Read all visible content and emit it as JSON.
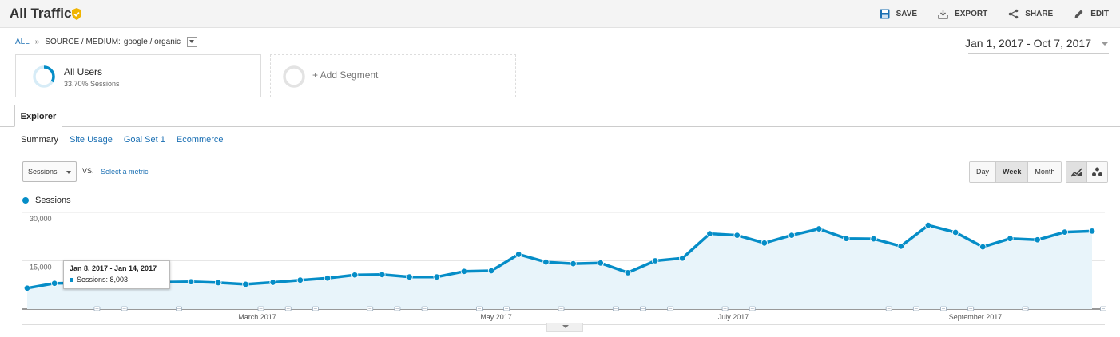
{
  "header": {
    "title": "All Traffic",
    "actions": [
      {
        "label": "SAVE",
        "icon": "save-icon"
      },
      {
        "label": "EXPORT",
        "icon": "export-icon"
      },
      {
        "label": "SHARE",
        "icon": "share-icon"
      },
      {
        "label": "EDIT",
        "icon": "edit-icon"
      }
    ]
  },
  "breadcrumb": {
    "all": "ALL",
    "separator": "»",
    "dimension": "SOURCE / MEDIUM:",
    "value": "google / organic"
  },
  "date_range": "Jan 1, 2017 - Oct 7, 2017",
  "segments": {
    "active": {
      "name": "All Users",
      "sub": "33.70% Sessions",
      "fraction": 0.337
    },
    "add": "+ Add Segment"
  },
  "tabs": {
    "explorer": "Explorer"
  },
  "subtabs": [
    {
      "label": "Summary",
      "active": true
    },
    {
      "label": "Site Usage",
      "active": false
    },
    {
      "label": "Goal Set 1",
      "active": false
    },
    {
      "label": "Ecommerce",
      "active": false
    }
  ],
  "controls": {
    "metric": "Sessions",
    "vs": "VS.",
    "select_metric": "Select a metric",
    "granularity": [
      "Day",
      "Week",
      "Month"
    ],
    "granularity_selected": "Week"
  },
  "legend": {
    "label": "Sessions",
    "color": "#058dc7"
  },
  "tooltip": {
    "range": "Jan 8, 2017 - Jan 14, 2017",
    "value": "Sessions: 8,003"
  },
  "chart_data": {
    "type": "area",
    "series": [
      {
        "name": "Sessions",
        "color": "#058dc7",
        "values": [
          6500,
          8003,
          8100,
          8150,
          8200,
          8350,
          8500,
          8200,
          7700,
          8300,
          9000,
          9600,
          10600,
          10700,
          10000,
          10000,
          11700,
          11900,
          17000,
          14600,
          14100,
          14300,
          11300,
          15000,
          15800,
          23400,
          22900,
          20500,
          22900,
          24900,
          21900,
          21800,
          19500,
          26000,
          23800,
          19300,
          21900,
          21500,
          23900,
          24200
        ]
      }
    ],
    "x_labels": [
      "...",
      "March 2017",
      "May 2017",
      "July 2017",
      "September 2017"
    ],
    "y_ticks": [
      "15,000",
      "30,000"
    ],
    "ylim": [
      0,
      30000
    ],
    "grid": true,
    "annotation_markers": 20
  },
  "colors": {
    "accent": "#058dc7",
    "link": "#1a6fb3",
    "shield": "#f0b400"
  }
}
